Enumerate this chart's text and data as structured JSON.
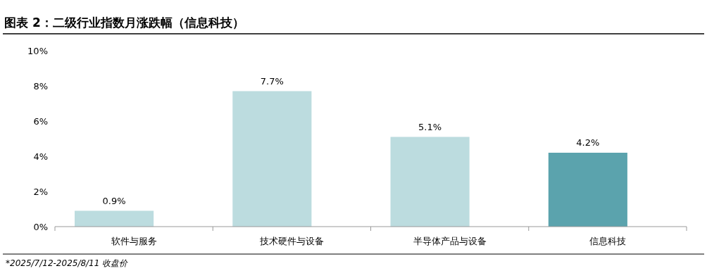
{
  "chart_data": {
    "type": "bar",
    "title": "图表 2：二级行业指数月涨跌幅（信息科技）",
    "categories": [
      "软件与服务",
      "技术硬件与设备",
      "半导体产品与设备",
      "信息科技"
    ],
    "values": [
      0.9,
      7.7,
      5.1,
      4.2
    ],
    "colors": [
      "#bcdcdf",
      "#bcdcdf",
      "#bcdcdf",
      "#5ba3ad"
    ],
    "value_labels": [
      "0.9%",
      "7.7%",
      "5.1%",
      "4.2%"
    ],
    "ylim": [
      0,
      10
    ],
    "yticks": [
      {
        "value": 0,
        "label": "0%"
      },
      {
        "value": 2,
        "label": "2%"
      },
      {
        "value": 4,
        "label": "4%"
      },
      {
        "value": 6,
        "label": "6%"
      },
      {
        "value": 8,
        "label": "8%"
      },
      {
        "value": 10,
        "label": "10%"
      }
    ],
    "annotations": [
      "*2025/7/12-2025/8/11 收盘价"
    ]
  }
}
